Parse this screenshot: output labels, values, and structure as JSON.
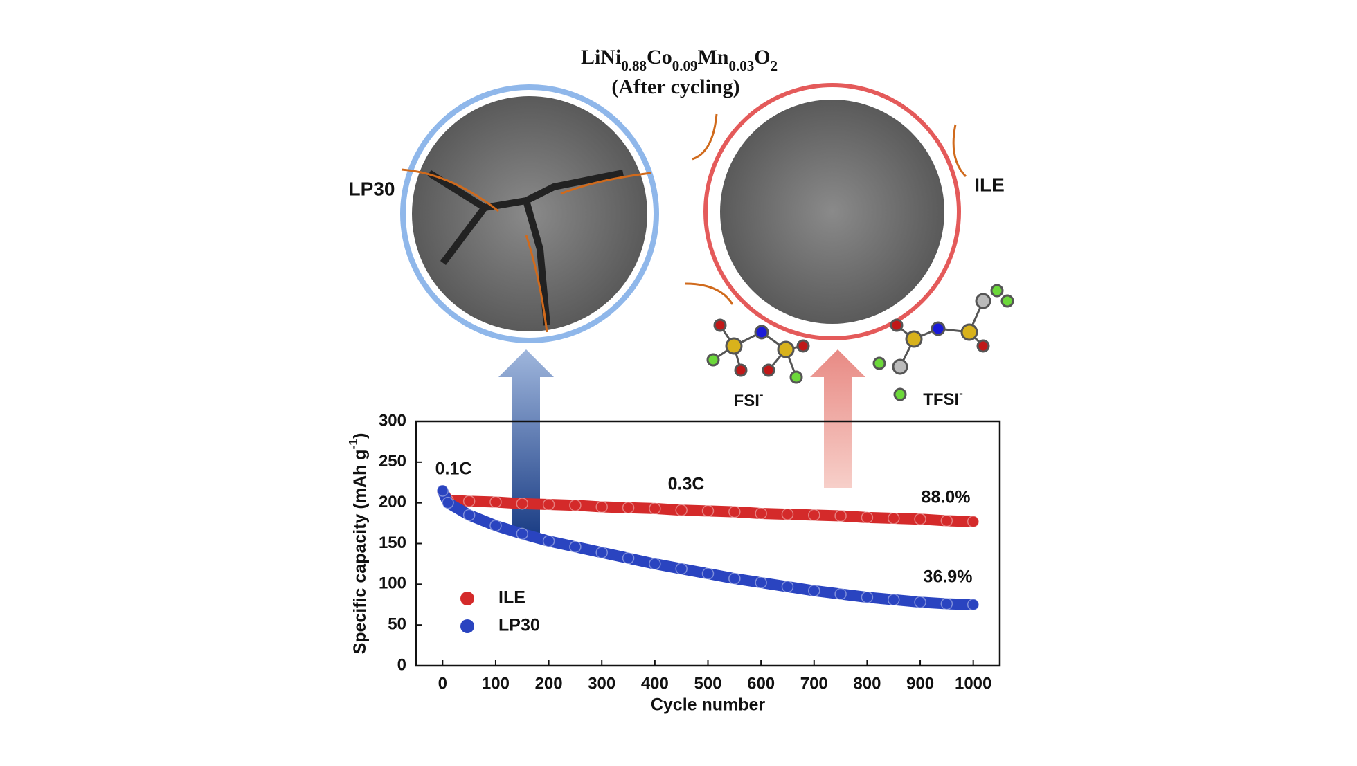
{
  "figure": {
    "formula": [
      "LiNi",
      "0.88",
      "Co",
      "0.09",
      "Mn",
      "0.03",
      "O",
      "2"
    ],
    "subtitle": "(After cycling)",
    "anion1": [
      "FSI",
      "-"
    ],
    "anion2": [
      "TFSI",
      "-"
    ]
  },
  "chart_data": {
    "type": "line",
    "xlabel": "Cycle number",
    "ylabel": [
      "Specific capacity (mAh g",
      "-1",
      ")"
    ],
    "x": [
      0,
      10,
      50,
      100,
      150,
      200,
      250,
      300,
      350,
      400,
      450,
      500,
      550,
      600,
      650,
      700,
      750,
      800,
      850,
      900,
      950,
      1000
    ],
    "series": [
      {
        "name": "ILE",
        "color": "#d42a2a",
        "values": [
          214,
          203,
          202,
          201,
          199,
          198,
          197,
          195,
          194,
          193,
          191,
          190,
          189,
          187,
          186,
          185,
          184,
          182,
          181,
          180,
          178,
          177
        ]
      },
      {
        "name": "LP30",
        "color": "#2a44c0",
        "values": [
          215,
          200,
          185,
          172,
          162,
          153,
          146,
          139,
          132,
          125,
          119,
          113,
          107,
          102,
          97,
          92,
          88,
          84,
          81,
          78,
          76,
          75
        ]
      }
    ],
    "annotations": [
      "0.1C",
      "0.3C",
      "88.0%",
      "36.9%"
    ],
    "xlim": [
      -50,
      1050
    ],
    "xticks": [
      0,
      100,
      200,
      300,
      400,
      500,
      600,
      700,
      800,
      900,
      1000
    ],
    "ylim": [
      0,
      300
    ],
    "yticks": [
      0,
      50,
      100,
      150,
      200,
      250,
      300
    ],
    "legend": "lower-left"
  }
}
